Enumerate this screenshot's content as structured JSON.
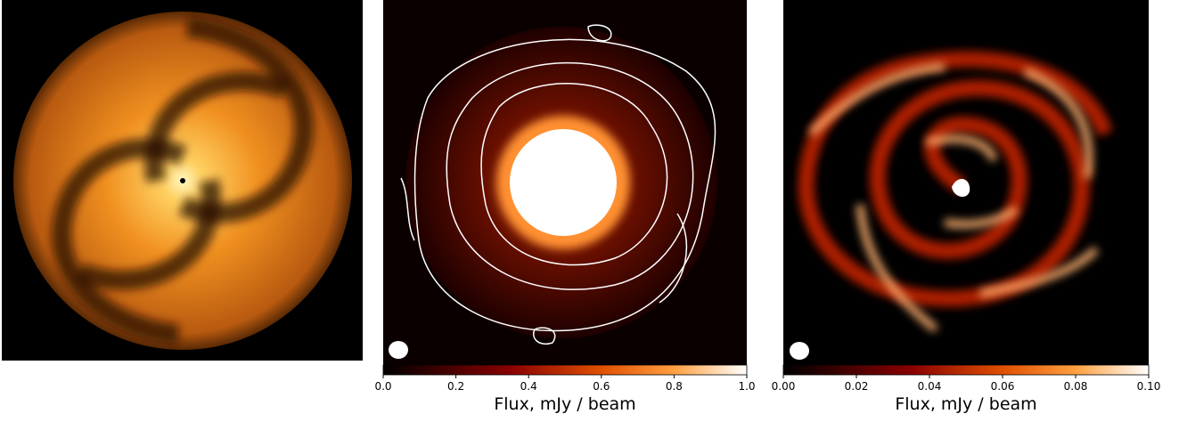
{
  "chart_data": [
    {
      "type": "colorbar",
      "xlabel": "Flux, mJy / beam",
      "xlim": [
        0,
        1
      ],
      "xticks": [
        {
          "value": 0,
          "label": "0.0"
        },
        0.2,
        0.4,
        0.6,
        0.8,
        {
          "value": 1,
          "label": "1.0"
        }
      ]
    },
    {
      "type": "colorbar",
      "xlabel": "Flux, mJy / beam",
      "xlim": [
        0,
        0.1
      ],
      "xticks": [
        {
          "value": 0,
          "label": "0.00"
        },
        0.02,
        0.04,
        0.06,
        0.08,
        {
          "value": 0.1,
          "label": "0.10"
        }
      ]
    }
  ]
}
